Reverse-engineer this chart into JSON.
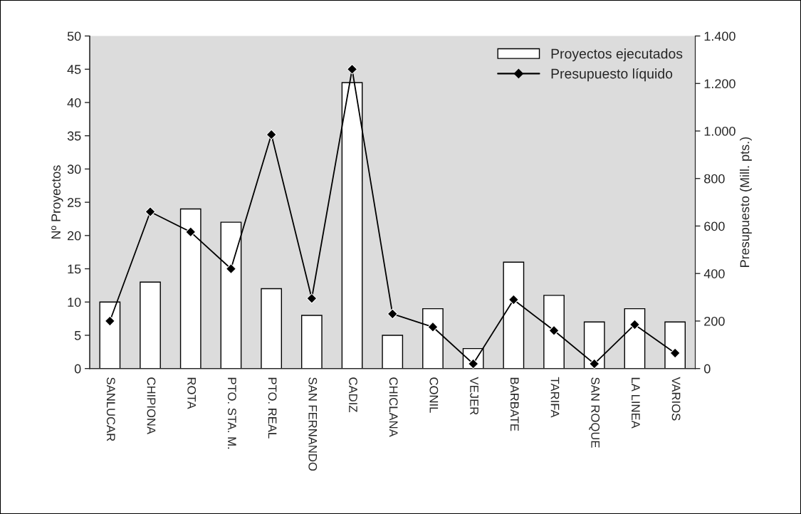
{
  "chart_data": {
    "type": "bar",
    "categories": [
      "SANLUCAR",
      "CHIPIONA",
      "ROTA",
      "PTO. STA. M.",
      "PTO. REAL",
      "SAN FERNANDO",
      "CADIZ",
      "CHICLANA",
      "CONIL",
      "VEJER",
      "BARBATE",
      "TARIFA",
      "SAN ROQUE",
      "LA LINEA",
      "VARIOS"
    ],
    "series": [
      {
        "name": "Proyectos ejecutados",
        "color": "#ffffff",
        "values": [
          10,
          13,
          24,
          22,
          12,
          8,
          43,
          5,
          9,
          3,
          16,
          11,
          7,
          9,
          7
        ]
      },
      {
        "name": "Presupuesto líquido",
        "type": "line",
        "axis": "y2",
        "color": "#000000",
        "marker": "diamond",
        "values": [
          200,
          660,
          575,
          420,
          985,
          295,
          1260,
          230,
          175,
          20,
          290,
          160,
          20,
          185,
          65
        ]
      }
    ],
    "ylabel": "Nº Proyectos",
    "y2label": "Presupuesto (Mill. pts.)",
    "ylim": [
      0,
      50
    ],
    "yticks": [
      0,
      5,
      10,
      15,
      20,
      25,
      30,
      35,
      40,
      45,
      50
    ],
    "y2lim": [
      0,
      1400
    ],
    "y2ticks": [
      {
        "value": 0,
        "label": "0"
      },
      {
        "value": 200,
        "label": "200"
      },
      {
        "value": 400,
        "label": "400"
      },
      {
        "value": 600,
        "label": "600"
      },
      {
        "value": 800,
        "label": "800"
      },
      {
        "value": 1000,
        "label": "1.000"
      },
      {
        "value": 1200,
        "label": "1.200"
      },
      {
        "value": 1400,
        "label": "1.400"
      }
    ],
    "legend": "top right",
    "grid": false
  }
}
